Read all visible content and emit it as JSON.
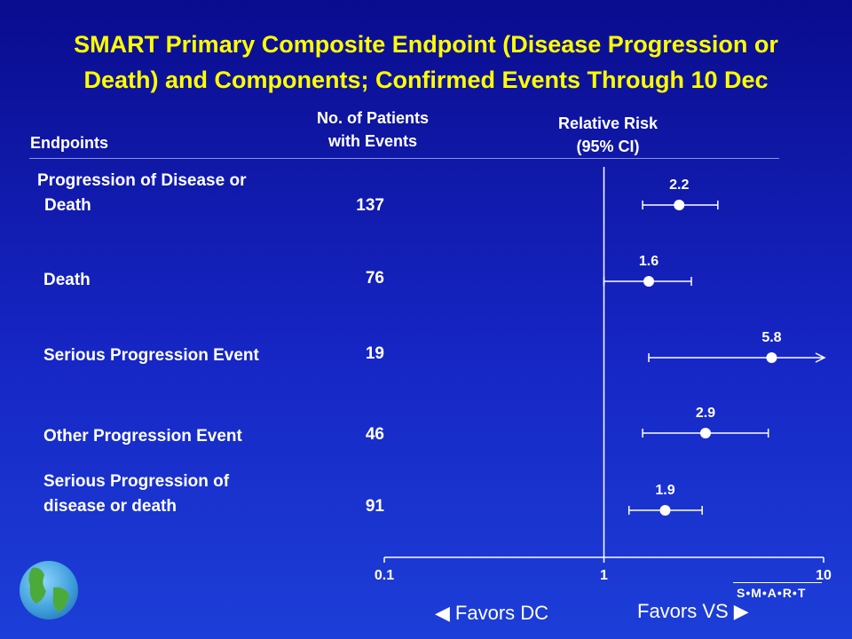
{
  "title": {
    "line1": "SMART Primary Composite Endpoint (Disease Progression or",
    "line2": "Death) and Components;   Confirmed Events Through 10 Dec"
  },
  "headers": {
    "endpoints": "Endpoints",
    "patients_line1": "No. of Patients",
    "patients_line2": "with Events",
    "rr_line1": "Relative Risk",
    "rr_line2": "(95% CI)"
  },
  "rows": [
    {
      "label_line1": "Progression of Disease or",
      "label_line2": "Death",
      "count": "137"
    },
    {
      "label_line1": "Death",
      "label_line2": "",
      "count": "76"
    },
    {
      "label_line1": "Serious Progression Event",
      "label_line2": "",
      "count": "19"
    },
    {
      "label_line1": "Other Progression Event",
      "label_line2": "",
      "count": "46"
    },
    {
      "label_line1": "Serious Progression of",
      "label_line2": "disease or death",
      "count": "91"
    }
  ],
  "favors": {
    "left": "Favors DC",
    "right": "Favors VS"
  },
  "logo": "S•M•A•R•T",
  "chart_data": {
    "type": "forest",
    "scale": "log",
    "xlim": [
      0.1,
      10
    ],
    "xticks": [
      {
        "value": 0.1,
        "label": "0.1"
      },
      {
        "value": 1,
        "label": "1"
      },
      {
        "value": 10,
        "label": "10"
      }
    ],
    "reference_line": 1,
    "grid": false,
    "points": [
      {
        "endpoint": "Progression of Disease or Death",
        "rr": 2.2,
        "label": "2.2",
        "ci_low": 1.5,
        "ci_high": 3.3
      },
      {
        "endpoint": "Death",
        "rr": 1.6,
        "label": "1.6",
        "ci_low": 1.0,
        "ci_high": 2.5
      },
      {
        "endpoint": "Serious Progression Event",
        "rr": 5.8,
        "label": "5.8",
        "ci_low": 1.6,
        "ci_high": 10,
        "ci_high_arrow": true
      },
      {
        "endpoint": "Other Progression Event",
        "rr": 2.9,
        "label": "2.9",
        "ci_low": 1.5,
        "ci_high": 5.6
      },
      {
        "endpoint": "Serious Progression of disease or death",
        "rr": 1.9,
        "label": "1.9",
        "ci_low": 1.3,
        "ci_high": 2.8
      }
    ]
  }
}
